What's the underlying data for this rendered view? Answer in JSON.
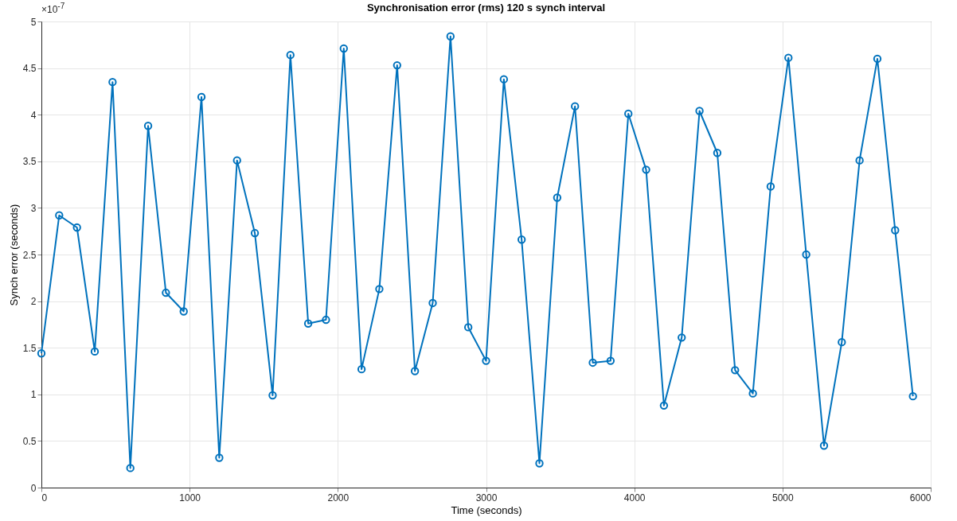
{
  "chart_data": {
    "type": "line",
    "title": "Synchronisation error (rms) 120 s synch interval",
    "xlabel": "Time (seconds)",
    "ylabel": "Synch error (seconds)",
    "annotations": [
      "×10$^{-7}$"
    ],
    "x": [
      0,
      120,
      240,
      360,
      480,
      600,
      720,
      840,
      960,
      1080,
      1200,
      1320,
      1440,
      1560,
      1680,
      1800,
      1920,
      2040,
      2160,
      2280,
      2400,
      2520,
      2640,
      2760,
      2880,
      3000,
      3120,
      3240,
      3360,
      3480,
      3600,
      3720,
      3840,
      3960,
      4080,
      4200,
      4320,
      4440,
      4560,
      4680,
      4800,
      4920,
      5040,
      5160,
      5280,
      5400,
      5520,
      5640,
      5760,
      5880
    ],
    "series": [
      {
        "color": "#0072bd",
        "values": [
          1.44,
          2.92,
          2.79,
          1.46,
          4.35,
          0.21,
          3.88,
          2.09,
          1.89,
          4.19,
          0.32,
          3.51,
          2.73,
          0.99,
          4.64,
          1.76,
          1.8,
          4.71,
          1.27,
          2.13,
          4.53,
          1.25,
          1.98,
          4.84,
          1.72,
          1.36,
          4.38,
          2.66,
          0.26,
          3.11,
          4.09,
          1.34,
          1.36,
          4.01,
          3.41,
          0.88,
          1.61,
          4.04,
          3.59,
          1.26,
          1.01,
          3.23,
          4.61,
          2.5,
          0.45,
          1.56,
          3.51,
          4.6,
          2.76,
          0.98
        ]
      }
    ],
    "xlim": [
      0,
      6000
    ],
    "xticks": [
      0,
      1000,
      2000,
      3000,
      4000,
      5000,
      6000
    ],
    "ylim": [
      0,
      5
    ],
    "yticks": [
      0,
      0.5,
      1,
      1.5,
      2,
      2.5,
      3,
      3.5,
      4,
      4.5,
      5
    ],
    "grid": true,
    "marker": "circle",
    "line_style": "solid"
  }
}
